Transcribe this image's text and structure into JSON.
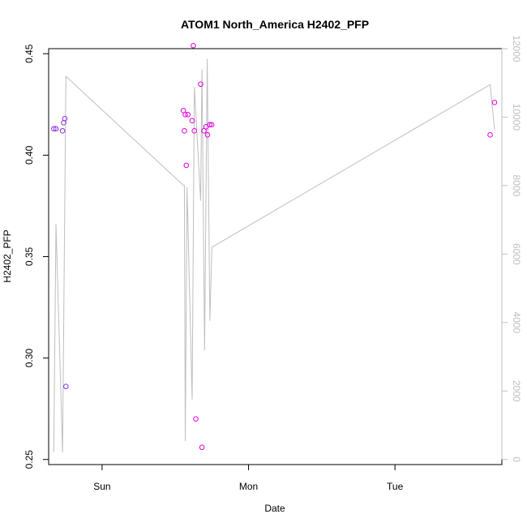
{
  "chart_data": {
    "type": "scatter",
    "title": "ATOM1 North_America H2402_PFP",
    "xlabel": "Date",
    "ylabel": "H2402_PFP",
    "x_unit": "day",
    "xlim": [
      -0.365,
      2.73
    ],
    "ylim": [
      0.2475,
      0.4525
    ],
    "y2lim": [
      -150,
      12000
    ],
    "x_ticks": [
      {
        "value": 0,
        "label": "Sun"
      },
      {
        "value": 1,
        "label": "Mon"
      },
      {
        "value": 2,
        "label": "Tue"
      }
    ],
    "y_ticks": [
      {
        "value": 0.25,
        "label": "0.25"
      },
      {
        "value": 0.3,
        "label": "0.30"
      },
      {
        "value": 0.35,
        "label": "0.35"
      },
      {
        "value": 0.4,
        "label": "0.40"
      },
      {
        "value": 0.45,
        "label": "0.45"
      }
    ],
    "y2_ticks": [
      {
        "value": 0,
        "label": "0"
      },
      {
        "value": 2000,
        "label": "2000"
      },
      {
        "value": 4000,
        "label": "4000"
      },
      {
        "value": 6000,
        "label": "6000"
      },
      {
        "value": 8000,
        "label": "8000"
      },
      {
        "value": 10000,
        "label": "10000"
      },
      {
        "value": 12000,
        "label": "12000"
      }
    ],
    "colors": {
      "line": "#bebebe",
      "points_early": "#8a2be2",
      "points_late": "#e000e0",
      "axis": "#000000",
      "axis_right": "#bebebe"
    },
    "series": [
      {
        "kind": "points",
        "color_key": "points_early",
        "points": [
          {
            "x": -0.33,
            "y": 0.413
          },
          {
            "x": -0.315,
            "y": 0.413
          },
          {
            "x": -0.27,
            "y": 0.412
          },
          {
            "x": -0.262,
            "y": 0.416
          },
          {
            "x": -0.255,
            "y": 0.418
          },
          {
            "x": -0.247,
            "y": 0.286
          }
        ]
      },
      {
        "kind": "points",
        "color_key": "points_late",
        "points": [
          {
            "x": 0.555,
            "y": 0.422
          },
          {
            "x": 0.562,
            "y": 0.412
          },
          {
            "x": 0.568,
            "y": 0.42
          },
          {
            "x": 0.575,
            "y": 0.395
          },
          {
            "x": 0.586,
            "y": 0.42
          },
          {
            "x": 0.615,
            "y": 0.417
          },
          {
            "x": 0.623,
            "y": 0.454
          },
          {
            "x": 0.63,
            "y": 0.412
          },
          {
            "x": 0.64,
            "y": 0.27
          },
          {
            "x": 0.673,
            "y": 0.435
          },
          {
            "x": 0.682,
            "y": 0.256
          },
          {
            "x": 0.695,
            "y": 0.412
          },
          {
            "x": 0.71,
            "y": 0.414
          },
          {
            "x": 0.72,
            "y": 0.41
          },
          {
            "x": 0.735,
            "y": 0.415
          },
          {
            "x": 0.748,
            "y": 0.415
          },
          {
            "x": 2.65,
            "y": 0.41
          },
          {
            "x": 2.68,
            "y": 0.426
          }
        ]
      },
      {
        "kind": "line",
        "axis": "right",
        "color_key": "line",
        "points": [
          {
            "x": -0.33,
            "y": 220
          },
          {
            "x": -0.315,
            "y": 6880
          },
          {
            "x": -0.27,
            "y": 200
          },
          {
            "x": -0.247,
            "y": 11190
          },
          {
            "x": 0.555,
            "y": 8010
          },
          {
            "x": 0.562,
            "y": 8010
          },
          {
            "x": 0.568,
            "y": 530
          },
          {
            "x": 0.58,
            "y": 7950
          },
          {
            "x": 0.615,
            "y": 1750
          },
          {
            "x": 0.63,
            "y": 10880
          },
          {
            "x": 0.673,
            "y": 7560
          },
          {
            "x": 0.682,
            "y": 11400
          },
          {
            "x": 0.7,
            "y": 3190
          },
          {
            "x": 0.718,
            "y": 11700
          },
          {
            "x": 0.736,
            "y": 4050
          },
          {
            "x": 0.75,
            "y": 6200
          },
          {
            "x": 2.65,
            "y": 10950
          },
          {
            "x": 2.68,
            "y": 9650
          }
        ]
      }
    ]
  }
}
